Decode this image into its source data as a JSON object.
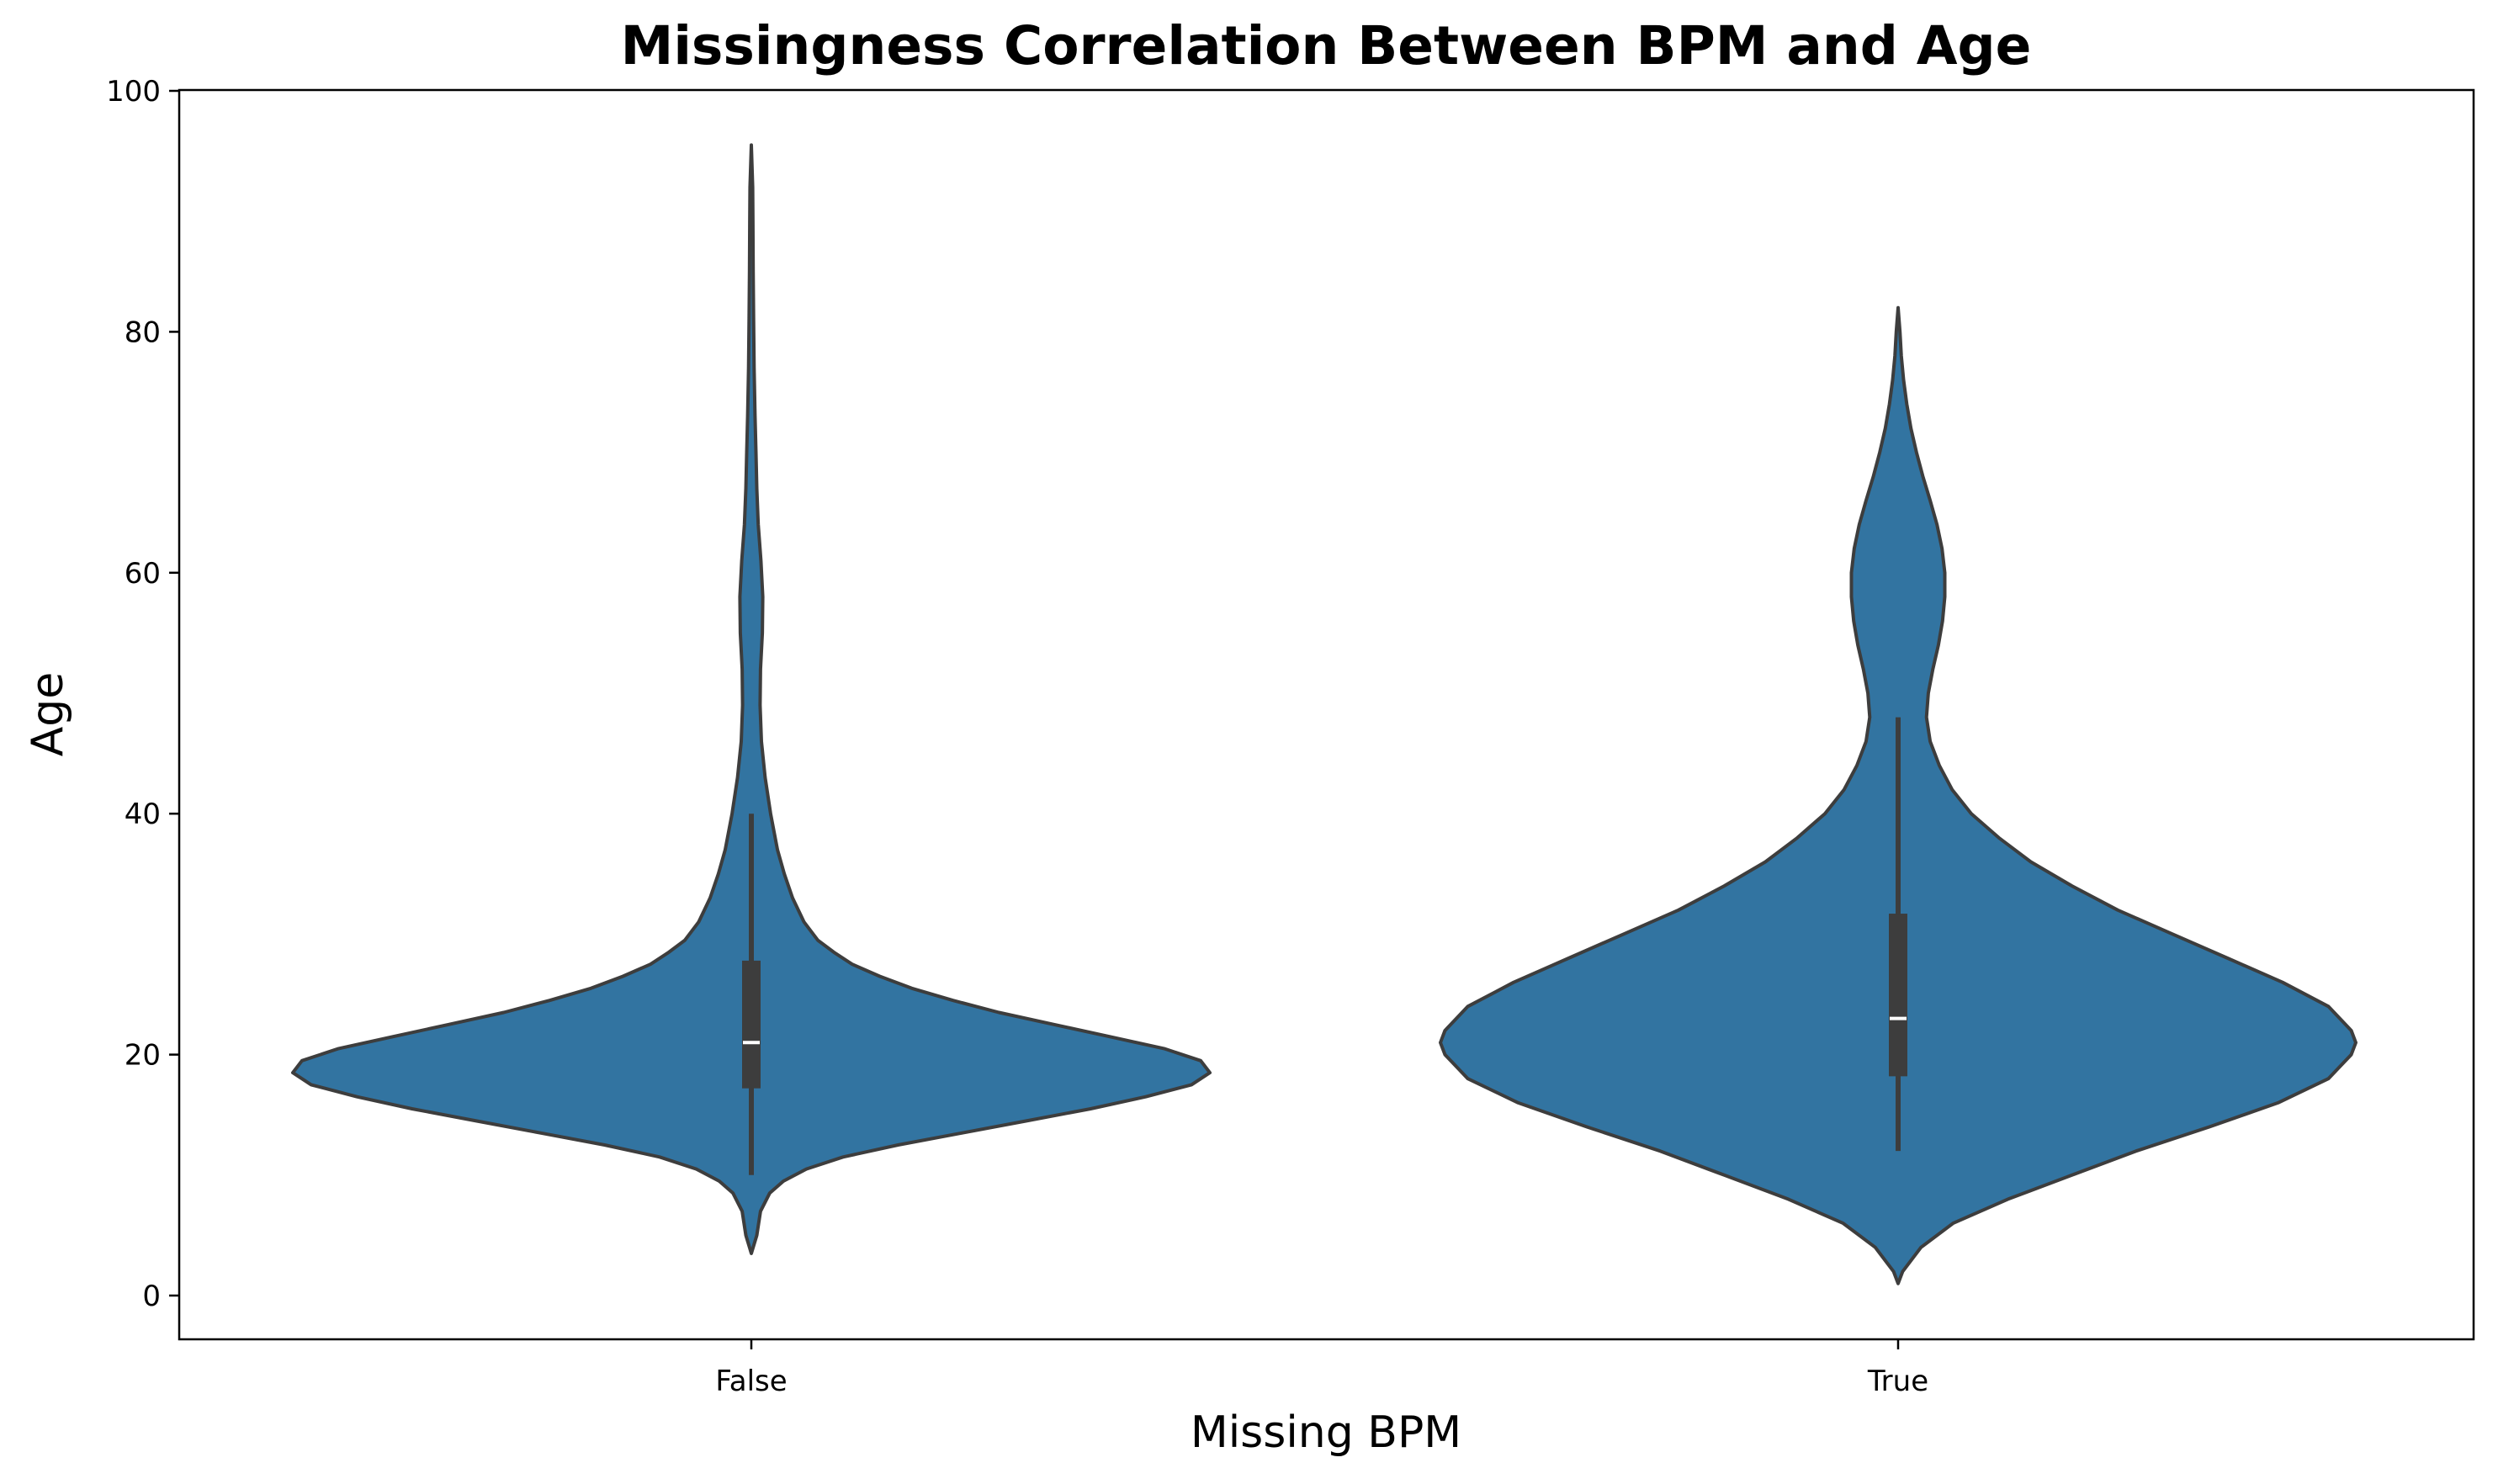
{
  "chart_data": {
    "type": "violin",
    "title": "Missingness Correlation Between BPM and Age",
    "xlabel": "Missing BPM",
    "ylabel": "Age",
    "categories": [
      "False",
      "True"
    ],
    "ylim": [
      -3.5,
      100
    ],
    "yticks": [
      0,
      20,
      40,
      60,
      80,
      100
    ],
    "grid": false,
    "legend": "none",
    "colors": {
      "fill": "#3274a1",
      "outline": "#3d3d3d",
      "box": "#3d3d3d",
      "median": "#ffffff",
      "axis": "#000000"
    },
    "series": [
      {
        "category": "False",
        "min": 3.5,
        "max": 95.5,
        "whisker_low": 10,
        "whisker_high": 40,
        "q1": 17.2,
        "median": 21,
        "q3": 27.8,
        "density": [
          [
            3.5,
            0.0
          ],
          [
            5,
            0.012
          ],
          [
            7,
            0.02
          ],
          [
            8.5,
            0.04
          ],
          [
            9.5,
            0.07
          ],
          [
            10.5,
            0.12
          ],
          [
            11.5,
            0.2
          ],
          [
            12.5,
            0.32
          ],
          [
            13.5,
            0.46
          ],
          [
            14.5,
            0.6
          ],
          [
            15.5,
            0.74
          ],
          [
            16.5,
            0.86
          ],
          [
            17.5,
            0.96
          ],
          [
            18.5,
            1.0
          ],
          [
            19.5,
            0.98
          ],
          [
            20.5,
            0.9
          ],
          [
            21.5,
            0.78
          ],
          [
            22.5,
            0.66
          ],
          [
            23.5,
            0.54
          ],
          [
            24.5,
            0.44
          ],
          [
            25.5,
            0.35
          ],
          [
            26.5,
            0.28
          ],
          [
            27.5,
            0.22
          ],
          [
            28.5,
            0.18
          ],
          [
            29.5,
            0.145
          ],
          [
            31,
            0.115
          ],
          [
            33,
            0.09
          ],
          [
            35,
            0.072
          ],
          [
            37,
            0.057
          ],
          [
            40,
            0.042
          ],
          [
            43,
            0.03
          ],
          [
            46,
            0.022
          ],
          [
            49,
            0.019
          ],
          [
            52,
            0.02
          ],
          [
            55,
            0.024
          ],
          [
            58,
            0.025
          ],
          [
            61,
            0.021
          ],
          [
            64,
            0.015
          ],
          [
            67,
            0.012
          ],
          [
            70,
            0.01
          ],
          [
            73,
            0.008
          ],
          [
            77,
            0.006
          ],
          [
            81,
            0.005
          ],
          [
            85,
            0.004
          ],
          [
            89,
            0.0035
          ],
          [
            92,
            0.003
          ],
          [
            95.5,
            0.0
          ]
        ]
      },
      {
        "category": "True",
        "min": 1,
        "max": 82,
        "whisker_low": 12,
        "whisker_high": 48,
        "q1": 18.2,
        "median": 23,
        "q3": 31.7,
        "density": [
          [
            1,
            0.0
          ],
          [
            2,
            0.01
          ],
          [
            4,
            0.05
          ],
          [
            6,
            0.12
          ],
          [
            8,
            0.24
          ],
          [
            10,
            0.38
          ],
          [
            12,
            0.52
          ],
          [
            14,
            0.68
          ],
          [
            16,
            0.83
          ],
          [
            18,
            0.94
          ],
          [
            20,
            0.99
          ],
          [
            21,
            1.0
          ],
          [
            22,
            0.99
          ],
          [
            24,
            0.94
          ],
          [
            26,
            0.84
          ],
          [
            28,
            0.72
          ],
          [
            30,
            0.6
          ],
          [
            32,
            0.48
          ],
          [
            34,
            0.38
          ],
          [
            36,
            0.29
          ],
          [
            38,
            0.22
          ],
          [
            40,
            0.16
          ],
          [
            42,
            0.118
          ],
          [
            44,
            0.09
          ],
          [
            46,
            0.07
          ],
          [
            48,
            0.062
          ],
          [
            50,
            0.066
          ],
          [
            52,
            0.076
          ],
          [
            54,
            0.088
          ],
          [
            56,
            0.097
          ],
          [
            58,
            0.102
          ],
          [
            60,
            0.102
          ],
          [
            62,
            0.096
          ],
          [
            64,
            0.085
          ],
          [
            66,
            0.07
          ],
          [
            68,
            0.054
          ],
          [
            70,
            0.04
          ],
          [
            72,
            0.028
          ],
          [
            74,
            0.019
          ],
          [
            76,
            0.012
          ],
          [
            78,
            0.007
          ],
          [
            80,
            0.004
          ],
          [
            82,
            0.0
          ]
        ]
      }
    ]
  }
}
